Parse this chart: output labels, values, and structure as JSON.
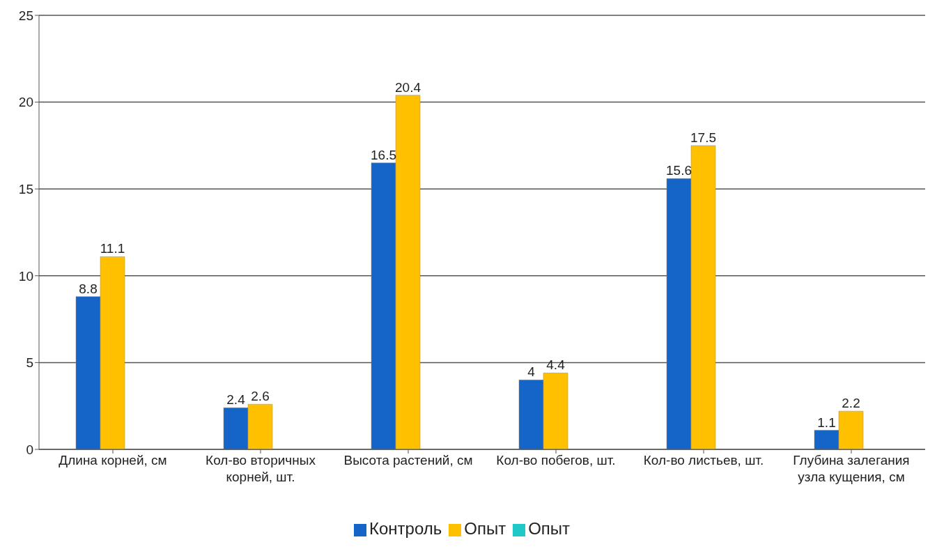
{
  "chart_data": {
    "type": "bar",
    "categories": [
      "Длина корней, см",
      "Кол-во вторичных корней, шт.",
      "Высота растений, см",
      "Кол-во побегов, шт.",
      "Кол-во листьев, шт.",
      "Глубина залегания узла кущения, см"
    ],
    "series": [
      {
        "name": "Контроль",
        "color": "#1565c8",
        "values": [
          8.8,
          2.4,
          16.5,
          4,
          15.6,
          1.1
        ]
      },
      {
        "name": "Опыт",
        "color": "#ffc000",
        "values": [
          11.1,
          2.6,
          20.4,
          4.4,
          17.5,
          2.2
        ]
      },
      {
        "name": "Опыт",
        "color": "#20c8c8",
        "values": [
          null,
          null,
          null,
          null,
          null,
          null
        ]
      }
    ],
    "ylim": [
      0,
      25
    ],
    "yticks": [
      0,
      5,
      10,
      15,
      20,
      25
    ],
    "grid": "y",
    "legend": "bottom",
    "data_labels": true
  }
}
